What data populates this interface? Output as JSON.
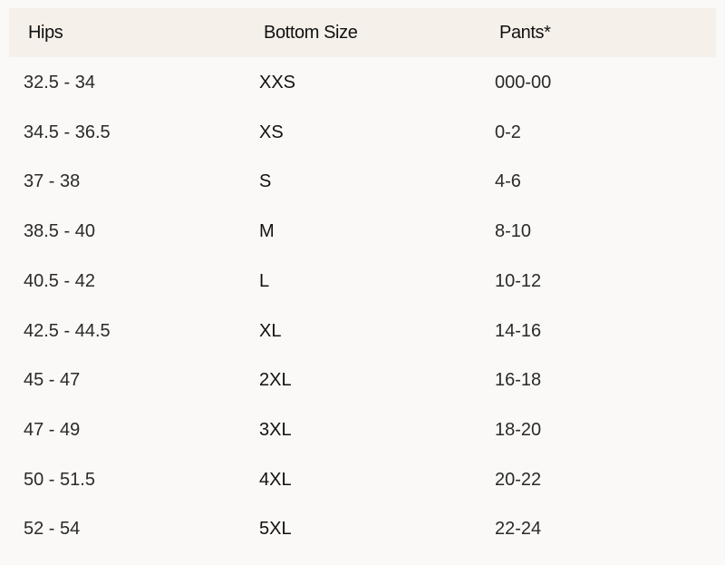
{
  "headers": [
    "Hips",
    "Bottom Size",
    "Pants*"
  ],
  "rows": [
    [
      "32.5 - 34",
      "XXS",
      "000-00"
    ],
    [
      "34.5 - 36.5",
      "XS",
      "0-2"
    ],
    [
      "37 - 38",
      "S",
      "4-6"
    ],
    [
      "38.5 - 40",
      "M",
      "8-10"
    ],
    [
      "40.5 - 42",
      "L",
      "10-12"
    ],
    [
      "42.5 - 44.5",
      "XL",
      "14-16"
    ],
    [
      "45 - 47",
      "2XL",
      "16-18"
    ],
    [
      "47 - 49",
      "3XL",
      "18-20"
    ],
    [
      "50 - 51.5",
      "4XL",
      "20-22"
    ],
    [
      "52 - 54",
      "5XL",
      "22-24"
    ]
  ],
  "colors": {
    "background": "#faf9f7",
    "header_background": "#f6f0ea"
  }
}
